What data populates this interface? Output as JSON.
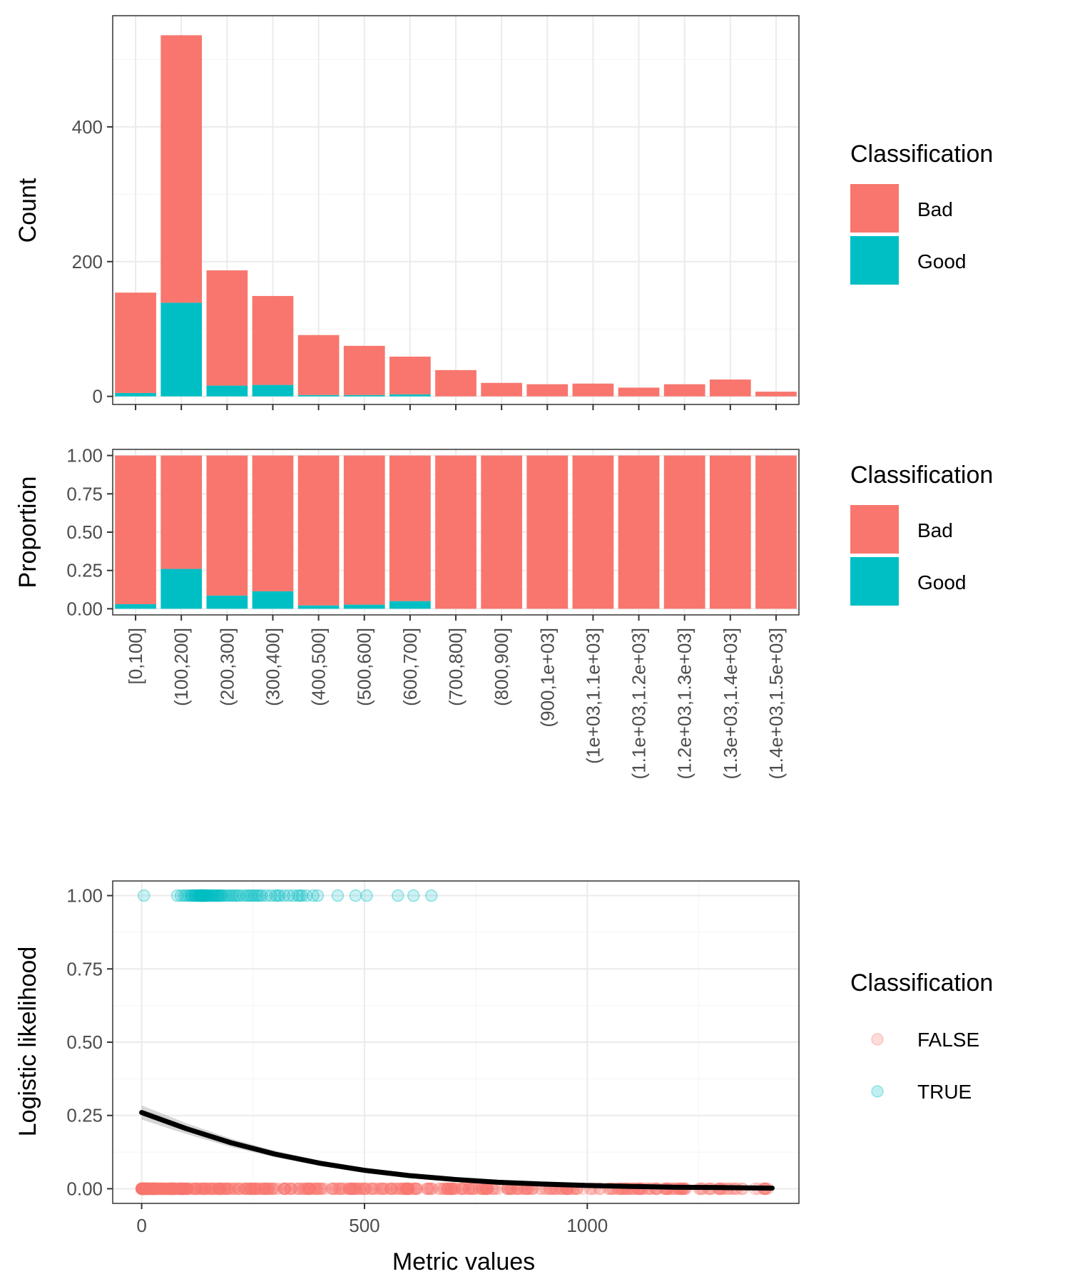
{
  "chart_data": [
    {
      "type": "bar",
      "stacked": true,
      "ylabel": "Count",
      "xlabel": "",
      "ylim": [
        -12,
        565
      ],
      "yticks": [
        0,
        200,
        400
      ],
      "categories": [
        "[0,100]",
        "(100,200]",
        "(200,300]",
        "(300,400]",
        "(400,500]",
        "(500,600]",
        "(600,700]",
        "(700,800]",
        "(800,900]",
        "(900,1e+03]",
        "(1e+03,1.1e+03]",
        "(1.1e+03,1.2e+03]",
        "(1.2e+03,1.3e+03]",
        "(1.3e+03,1.4e+03]",
        "(1.4e+03,1.5e+03]"
      ],
      "series": [
        {
          "name": "Good",
          "color": "#00BFC4",
          "values": [
            5,
            139,
            16,
            17,
            2,
            2,
            3,
            0,
            0,
            0,
            0,
            0,
            0,
            0,
            0
          ]
        },
        {
          "name": "Bad",
          "color": "#F8766D",
          "values": [
            149,
            397,
            171,
            132,
            89,
            73,
            56,
            39,
            20,
            18,
            19,
            13,
            18,
            25,
            7
          ]
        }
      ],
      "grid": true,
      "legend": {
        "title": "Classification",
        "position": "right",
        "entries": [
          "Bad",
          "Good"
        ]
      }
    },
    {
      "type": "bar",
      "stacked": true,
      "ylabel": "Proportion",
      "xlabel": "",
      "ylim": [
        -0.04,
        1.04
      ],
      "yticks": [
        "0.00",
        "0.25",
        "0.50",
        "0.75",
        "1.00"
      ],
      "categories": [
        "[0,100]",
        "(100,200]",
        "(200,300]",
        "(300,400]",
        "(400,500]",
        "(500,600]",
        "(600,700]",
        "(700,800]",
        "(800,900]",
        "(900,1e+03]",
        "(1e+03,1.1e+03]",
        "(1.1e+03,1.2e+03]",
        "(1.2e+03,1.3e+03]",
        "(1.3e+03,1.4e+03]",
        "(1.4e+03,1.5e+03]"
      ],
      "series": [
        {
          "name": "Good",
          "color": "#00BFC4",
          "values": [
            0.03,
            0.26,
            0.086,
            0.114,
            0.022,
            0.027,
            0.05,
            0,
            0,
            0,
            0,
            0,
            0,
            0,
            0
          ]
        },
        {
          "name": "Bad",
          "color": "#F8766D",
          "values": [
            0.97,
            0.74,
            0.914,
            0.886,
            0.978,
            0.973,
            0.95,
            1,
            1,
            1,
            1,
            1,
            1,
            1,
            1
          ]
        }
      ],
      "grid": true,
      "legend": {
        "title": "Classification",
        "position": "right",
        "entries": [
          "Bad",
          "Good"
        ]
      }
    },
    {
      "type": "scatter",
      "xlabel": "Metric values",
      "ylabel": "Logistic likelihood",
      "xlim": [
        -65,
        1475
      ],
      "ylim": [
        -0.05,
        1.05
      ],
      "xticks": [
        0,
        500,
        1000
      ],
      "yticks": [
        "0.00",
        "0.25",
        "0.50",
        "0.75",
        "1.00"
      ],
      "series": [
        {
          "name": "FALSE",
          "color": "#F8766D",
          "y": 0,
          "x_range": [
            0,
            1415
          ],
          "point_count": 560
        },
        {
          "name": "TRUE",
          "color": "#00BFC4",
          "y": 1,
          "x": [
            5,
            80,
            88,
            95,
            100,
            105,
            110,
            112,
            115,
            118,
            120,
            122,
            125,
            127,
            128,
            130,
            131,
            132,
            133,
            134,
            135,
            136,
            137,
            138,
            139,
            140,
            141,
            142,
            143,
            145,
            146,
            148,
            150,
            152,
            155,
            158,
            160,
            162,
            165,
            168,
            170,
            172,
            175,
            178,
            180,
            185,
            190,
            195,
            200,
            205,
            210,
            215,
            220,
            228,
            235,
            240,
            245,
            250,
            255,
            260,
            265,
            270,
            280,
            290,
            300,
            305,
            310,
            320,
            330,
            340,
            350,
            355,
            360,
            370,
            385,
            395,
            440,
            480,
            505,
            575,
            610,
            650
          ]
        },
        {
          "name": "logistic fit",
          "color": "#000000",
          "x": [
            0,
            100,
            200,
            300,
            400,
            500,
            600,
            700,
            800,
            900,
            1000,
            1100,
            1200,
            1300,
            1415
          ],
          "y": [
            0.26,
            0.205,
            0.157,
            0.118,
            0.087,
            0.063,
            0.045,
            0.032,
            0.022,
            0.016,
            0.011,
            0.008,
            0.005,
            0.004,
            0.002
          ]
        }
      ],
      "grid": true,
      "legend": {
        "title": "Classification",
        "position": "right",
        "entries": [
          "FALSE",
          "TRUE"
        ]
      }
    }
  ]
}
